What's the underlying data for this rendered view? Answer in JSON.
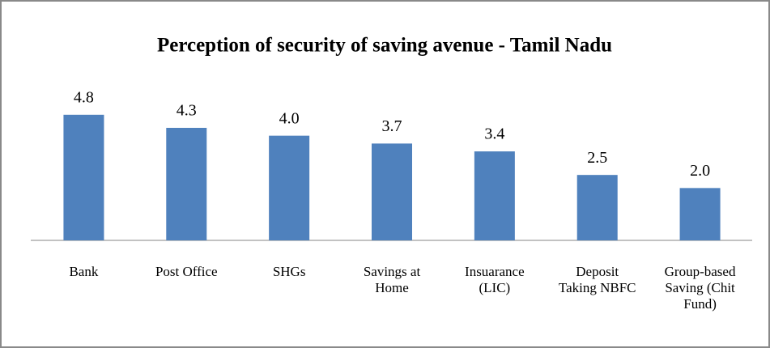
{
  "chart_data": {
    "type": "bar",
    "title": "Perception of security of saving avenue - Tamil Nadu",
    "categories": [
      "Bank",
      "Post Office",
      "SHGs",
      "Savings at Home",
      "Insuarance (LIC)",
      "Deposit Taking NBFC",
      "Group-based Saving (Chit Fund)"
    ],
    "values": [
      4.8,
      4.3,
      4.0,
      3.7,
      3.4,
      2.5,
      2.0
    ],
    "value_labels": [
      "4.8",
      "4.3",
      "4.0",
      "3.7",
      "3.4",
      "2.5",
      "2.0"
    ],
    "color": "#4f81bd",
    "ylim": [
      0,
      6
    ]
  }
}
